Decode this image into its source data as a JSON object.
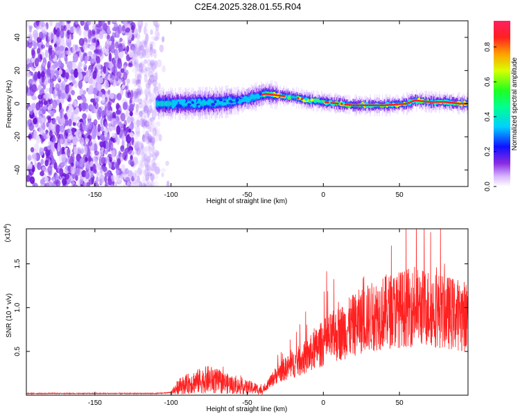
{
  "title": "C2E4.2025.328.01.55.R04",
  "chart_data": [
    {
      "type": "heatmap",
      "name": "spectrogram",
      "xlabel": "Height of straight line (km)",
      "ylabel": "Frequency (Hz)",
      "xlim": [
        -195,
        95
      ],
      "ylim": [
        -50,
        50
      ],
      "xticks": [
        -150,
        -100,
        -50,
        0,
        50
      ],
      "yticks": [
        -40,
        -20,
        0,
        20,
        40
      ],
      "colorbar": {
        "label": "Normalized spectral amplitude",
        "range": [
          0.0,
          0.95
        ],
        "ticks": [
          0.0,
          0.2,
          0.4,
          0.6,
          0.8
        ]
      },
      "ridge": {
        "x": [
          -110,
          -90,
          -70,
          -55,
          -45,
          -38,
          -30,
          -20,
          -10,
          0,
          10,
          20,
          40,
          55,
          60,
          70,
          80,
          90
        ],
        "freq": [
          0,
          0,
          0.5,
          2,
          4,
          6,
          5,
          4,
          2,
          1,
          0,
          -1,
          -1,
          0,
          2,
          1,
          1,
          0
        ]
      }
    },
    {
      "type": "line",
      "name": "snr",
      "xlabel": "Height of straight line (km)",
      "ylabel": "SNR (10 * v/v)",
      "y_multiplier": "(x10^4)",
      "xlim": [
        -195,
        95
      ],
      "ylim": [
        0,
        1.9
      ],
      "xticks": [
        -150,
        -100,
        -50,
        0,
        50
      ],
      "yticks": [
        0.5,
        1.0,
        1.5
      ],
      "ytick_labels": [
        "0.5",
        "1.0",
        "1.5"
      ],
      "color": "#ff2020",
      "envelope": {
        "x": [
          -195,
          -110,
          -100,
          -95,
          -85,
          -75,
          -65,
          -55,
          -45,
          -40,
          -35,
          -30,
          -20,
          -10,
          0,
          10,
          25,
          40,
          55,
          70,
          80,
          95
        ],
        "y": [
          0.02,
          0.02,
          0.03,
          0.1,
          0.15,
          0.18,
          0.14,
          0.1,
          0.08,
          0.05,
          0.15,
          0.25,
          0.35,
          0.45,
          0.6,
          0.7,
          0.85,
          0.95,
          1.0,
          1.0,
          0.95,
          0.9
        ]
      }
    }
  ],
  "colors": {
    "ridge_red": "#ff2020",
    "axis": "#000000",
    "background": "#ffffff"
  }
}
